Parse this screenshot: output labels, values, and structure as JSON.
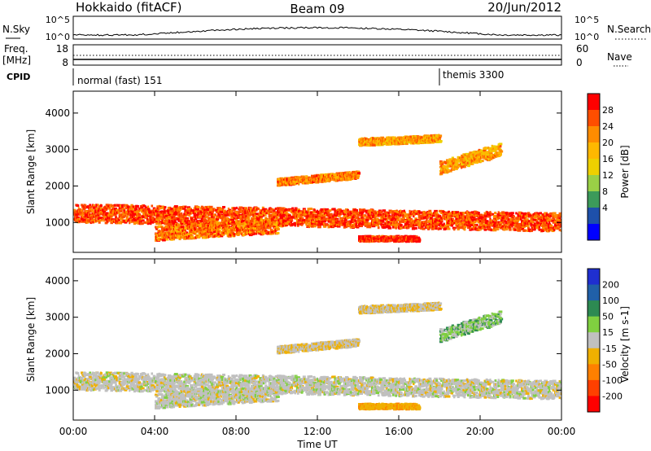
{
  "header": {
    "station": "Hokkaido (fitACF)",
    "beam": "Beam 09",
    "date": "20/Jun/2012"
  },
  "noise_panel": {
    "left_label": "N.Sky",
    "right_label": "N.Search",
    "tick_top": "10^5",
    "tick_bottom": "10^0"
  },
  "freq_panel": {
    "left_label_line1": "Freq.",
    "left_label_line2": "[MHz]",
    "left_tick_top": "18",
    "left_tick_bottom": "8",
    "right_label": "Nave",
    "right_tick_top": "60",
    "right_tick_bottom": "0"
  },
  "cpid_panel": {
    "label": "CPID",
    "modes": [
      {
        "name": "normal (fast) 151",
        "start_hour": 0
      },
      {
        "name": "themis 3300",
        "start_hour": 18
      }
    ]
  },
  "range_axis": {
    "label": "Slant Range [km]",
    "min": 180,
    "max": 4600,
    "ticks": [
      1000,
      2000,
      3000,
      4000
    ]
  },
  "time_axis": {
    "label": "Time UT",
    "min_hour": 0,
    "max_hour": 24,
    "tick_labels": [
      "00:00",
      "04:00",
      "08:00",
      "12:00",
      "16:00",
      "20:00",
      "00:00"
    ]
  },
  "power_colorbar": {
    "label": "Power [dB]",
    "tick_labels": [
      "28",
      "24",
      "20",
      "16",
      "12",
      "8",
      "4"
    ],
    "colors": [
      "#ff0000",
      "#ff4e00",
      "#ff8c00",
      "#ffb800",
      "#eed000",
      "#9ad046",
      "#3c9a5a",
      "#1e50aa",
      "#0000ff"
    ]
  },
  "velocity_colorbar": {
    "label": "Velocity [m s-1]",
    "tick_labels": [
      "200",
      "100",
      "50",
      "15",
      "-15",
      "-50",
      "-100",
      "-200"
    ],
    "colors": [
      "#1f2fd0",
      "#2060a8",
      "#2d8a52",
      "#80d040",
      "#c0c0c0",
      "#f0b000",
      "#ff8000",
      "#ff4000",
      "#ff0000"
    ]
  },
  "chart_data": {
    "type": "heatmap",
    "title": "Hokkaido (fitACF) Beam 09 20/Jun/2012",
    "xlabel": "Time UT",
    "ylabel": "Slant Range [km]",
    "xlim": [
      0,
      24
    ],
    "ylim": [
      180,
      4600
    ],
    "scatter_regions": [
      {
        "name": "main band",
        "t_start": 0,
        "t_end": 24,
        "range_center_start": 1250,
        "range_center_end": 1000,
        "width_km": 500,
        "power_db": 27,
        "velocity": 0
      },
      {
        "name": "lower band",
        "t_start": 4,
        "t_end": 10,
        "range_center_start": 700,
        "range_center_end": 900,
        "width_km": 400,
        "power_db": 25,
        "velocity": 0
      },
      {
        "name": "arc 1",
        "t_start": 10,
        "t_end": 14,
        "range_center_start": 2100,
        "range_center_end": 2300,
        "width_km": 200,
        "power_db": 24,
        "velocity": -10
      },
      {
        "name": "upper layer",
        "t_start": 14,
        "t_end": 18,
        "range_center_start": 3200,
        "range_center_end": 3300,
        "width_km": 200,
        "power_db": 22,
        "velocity": -10
      },
      {
        "name": "mid layer",
        "t_start": 18,
        "t_end": 21,
        "range_center_start": 2500,
        "range_center_end": 3000,
        "width_km": 350,
        "power_db": 22,
        "velocity": 20
      },
      {
        "name": "low-range flow",
        "t_start": 14,
        "t_end": 17,
        "range_center_start": 550,
        "range_center_end": 550,
        "width_km": 150,
        "power_db": 29,
        "velocity": -40
      }
    ]
  }
}
